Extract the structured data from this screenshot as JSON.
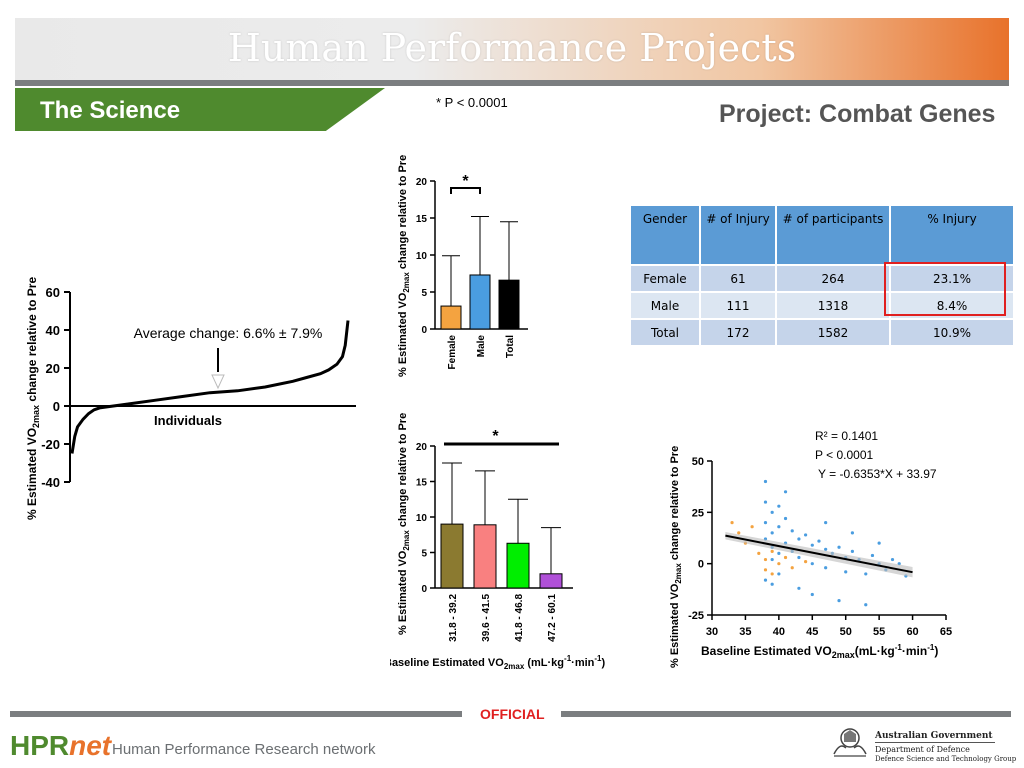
{
  "header": {
    "title": "Human Performance Projects",
    "section": "The Science",
    "significance_note": "* P < 0.0001",
    "project": "Project: Combat Genes"
  },
  "injury_table": {
    "columns": [
      "Gender",
      "# of Injury",
      "# of participants",
      "% Injury"
    ],
    "rows": [
      [
        "Female",
        "61",
        "264",
        "23.1%"
      ],
      [
        "Male",
        "111",
        "1318",
        "8.4%"
      ],
      [
        "Total",
        "172",
        "1582",
        "10.9%"
      ]
    ],
    "highlight_color": "#e02020",
    "header_color": "#5b9bd5"
  },
  "footer": {
    "classification": "OFFICIAL",
    "logo_h": "HPR",
    "logo_n": "net",
    "network": "Human Performance Research network",
    "gov_line1": "Australian Government",
    "gov_line2": "Department of Defence",
    "gov_line3": "Defence Science and Technology Group"
  },
  "chart_data": [
    {
      "type": "line",
      "id": "individuals",
      "ylabel_prefix": "% Estimated VO",
      "ylabel_sub": "2max",
      "ylabel_suffix": " change relative to Pre",
      "xlabel": "Individuals",
      "ylim": [
        -40,
        60
      ],
      "yticks": [
        -40,
        -20,
        0,
        20,
        40,
        60
      ],
      "annotation": "Average change: 6.6% ± 7.9%",
      "series": [
        {
          "x": [
            0,
            0.01,
            0.02,
            0.04,
            0.06,
            0.08,
            0.1,
            0.15,
            0.2,
            0.3,
            0.4,
            0.5,
            0.6,
            0.7,
            0.8,
            0.85,
            0.9,
            0.93,
            0.96,
            0.98,
            0.99,
            1.0
          ],
          "values": [
            -25,
            -16,
            -11,
            -7,
            -4,
            -2,
            -1,
            0,
            1,
            3,
            5,
            7,
            8,
            10,
            13,
            15,
            17,
            19,
            22,
            26,
            32,
            45
          ]
        }
      ],
      "color": "#000000"
    },
    {
      "type": "bar",
      "id": "gender",
      "ylabel_prefix": "% Estimated VO",
      "ylabel_sub": "2max",
      "ylabel_suffix": " change relative to Pre",
      "categories": [
        "Female",
        "Male",
        "Total"
      ],
      "values": [
        3.1,
        7.3,
        6.6
      ],
      "errors": [
        6.8,
        7.9,
        7.9
      ],
      "colors": [
        "#f4a340",
        "#4a9de0",
        "#000000"
      ],
      "ylim": [
        0,
        20
      ],
      "yticks": [
        0,
        5,
        10,
        15,
        20
      ],
      "significance": "*"
    },
    {
      "type": "bar",
      "id": "baseline-groups",
      "ylabel_prefix": "% Estimated VO",
      "ylabel_sub": "2max",
      "ylabel_suffix": " change relative to Pre",
      "xlabel_prefix": "Baseline Estimated VO",
      "xlabel_sub": "2max",
      "xlabel_units": " (mL·kg",
      "xlabel_sup1": "-1",
      "xlabel_mid": "·min",
      "xlabel_sup2": "-1",
      "xlabel_end": ")",
      "categories": [
        "31.8 - 39.2",
        "39.6 - 41.5",
        "41.8 - 46.8",
        "47.2 - 60.1"
      ],
      "values": [
        9.0,
        8.9,
        6.3,
        2.0
      ],
      "errors": [
        8.6,
        7.6,
        6.2,
        6.5
      ],
      "colors": [
        "#8b7a30",
        "#f98080",
        "#00ee00",
        "#b050d8"
      ],
      "ylim": [
        0,
        20
      ],
      "yticks": [
        0,
        5,
        10,
        15,
        20
      ],
      "significance": "*"
    },
    {
      "type": "scatter",
      "id": "regression",
      "ylabel_prefix": "% Estimated VO",
      "ylabel_sub": "2max",
      "ylabel_suffix": " change relative to Pre",
      "xlabel_prefix": "Baseline Estimated VO",
      "xlabel_sub": "2max",
      "xlabel_units": "(mL·kg",
      "xlabel_sup1": "-1",
      "xlabel_mid": "·min",
      "xlabel_sup2": "-1",
      "xlabel_end": ")",
      "xlim": [
        30,
        65
      ],
      "ylim": [
        -25,
        50
      ],
      "xticks": [
        30,
        35,
        40,
        45,
        50,
        55,
        60,
        65
      ],
      "yticks": [
        -25,
        0,
        25,
        50
      ],
      "r2": "R² = 0.1401",
      "p": "P < 0.0001",
      "equation": "Y = -0.6353*X + 33.97",
      "fit": {
        "slope": -0.6353,
        "intercept": 33.97,
        "x": [
          32,
          60
        ]
      },
      "series": [
        {
          "x": [
            38,
            38,
            38,
            38,
            39,
            39,
            39,
            39,
            40,
            40,
            40,
            41,
            41,
            42,
            42,
            43,
            43,
            44,
            45,
            45,
            46,
            47,
            47,
            48,
            49,
            50,
            50,
            51,
            52,
            53,
            54,
            55,
            56,
            57,
            59,
            38,
            39,
            40,
            41,
            43,
            45,
            47,
            49,
            51,
            53,
            55,
            58
          ],
          "values": [
            40,
            30,
            20,
            12,
            25,
            15,
            8,
            2,
            28,
            18,
            5,
            22,
            10,
            16,
            6,
            12,
            3,
            14,
            9,
            0,
            11,
            7,
            -2,
            5,
            8,
            3,
            -4,
            6,
            2,
            -5,
            4,
            0,
            -3,
            2,
            -6,
            -8,
            -10,
            -5,
            35,
            -12,
            -15,
            20,
            -18,
            15,
            -20,
            10,
            0
          ],
          "color": "#4a9de0"
        },
        {
          "x": [
            33,
            34,
            35,
            36,
            37,
            38,
            38,
            39,
            39,
            40,
            41,
            42,
            44
          ],
          "values": [
            20,
            15,
            10,
            18,
            5,
            2,
            -3,
            6,
            -5,
            0,
            3,
            -2,
            1
          ],
          "color": "#f4a340"
        }
      ]
    }
  ]
}
